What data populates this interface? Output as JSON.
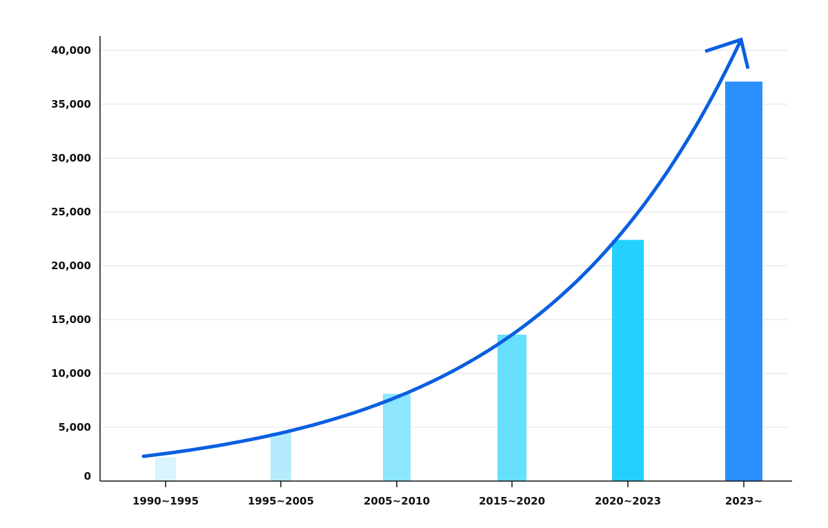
{
  "chart_data": {
    "type": "bar",
    "categories": [
      "1990~1995",
      "1995~2005",
      "2005~2010",
      "2015~2020",
      "2020~2023",
      "2023~"
    ],
    "values": [
      2200,
      4500,
      8100,
      13600,
      22400,
      37100
    ],
    "bar_colors": [
      "#d8f4fd",
      "#b5ecfd",
      "#8de6fd",
      "#66e0fe",
      "#24d1fe",
      "#2990fe"
    ],
    "ylim": [
      0,
      40000
    ],
    "yticks": [
      0,
      5000,
      10000,
      15000,
      20000,
      25000,
      30000,
      35000,
      40000
    ],
    "ytick_labels": [
      "0",
      "5,000",
      "10,000",
      "15,000",
      "20,000",
      "25,000",
      "30,000",
      "35,000",
      "40,000"
    ],
    "title": "",
    "xlabel": "",
    "ylabel": "",
    "grid": true,
    "trend_arrow": {
      "shape": "exponential",
      "color": "#0a5fe0",
      "values": [
        2300,
        5000,
        9000,
        15000,
        24000,
        41000
      ]
    },
    "axis_color": "#111111",
    "grid_color": "#e2e2e2"
  }
}
